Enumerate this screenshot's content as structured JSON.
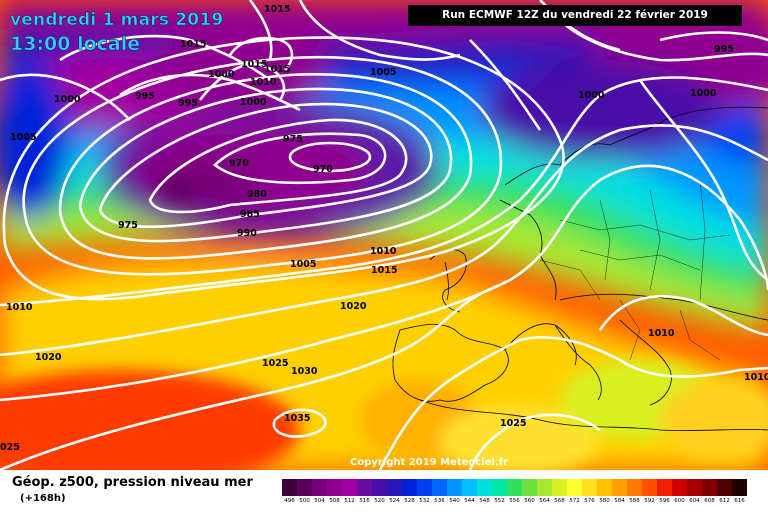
{
  "header": {
    "date": "vendredi 1 mars 2019",
    "time": "13:00 locale",
    "run": "Run ECMWF 12Z du vendredi 22 février 2019"
  },
  "copyright": "Copyright 2019 Meteociel.fr",
  "legend": {
    "title": "Géop. z500, pression niveau mer",
    "subtitle": "(+168h)",
    "scale": [
      {
        "v": "496",
        "c": "#3c003c"
      },
      {
        "v": "500",
        "c": "#5a005a"
      },
      {
        "v": "504",
        "c": "#780078"
      },
      {
        "v": "508",
        "c": "#900090"
      },
      {
        "v": "512",
        "c": "#a000a0"
      },
      {
        "v": "516",
        "c": "#6a0aa0"
      },
      {
        "v": "520",
        "c": "#4a0fa8"
      },
      {
        "v": "524",
        "c": "#2818b8"
      },
      {
        "v": "528",
        "c": "#0020d8"
      },
      {
        "v": "532",
        "c": "#0040f0"
      },
      {
        "v": "536",
        "c": "#0068ff"
      },
      {
        "v": "540",
        "c": "#0094ff"
      },
      {
        "v": "544",
        "c": "#00c0ff"
      },
      {
        "v": "548",
        "c": "#00e0e0"
      },
      {
        "v": "552",
        "c": "#00e8a0"
      },
      {
        "v": "556",
        "c": "#30e060"
      },
      {
        "v": "560",
        "c": "#70e040"
      },
      {
        "v": "564",
        "c": "#a8e830"
      },
      {
        "v": "568",
        "c": "#d8f020"
      },
      {
        "v": "572",
        "c": "#ffff30"
      },
      {
        "v": "576",
        "c": "#ffe020"
      },
      {
        "v": "580",
        "c": "#ffc000"
      },
      {
        "v": "584",
        "c": "#ffa000"
      },
      {
        "v": "588",
        "c": "#ff7a00"
      },
      {
        "v": "592",
        "c": "#ff5000"
      },
      {
        "v": "596",
        "c": "#f02000"
      },
      {
        "v": "600",
        "c": "#d00000"
      },
      {
        "v": "604",
        "c": "#a80000"
      },
      {
        "v": "608",
        "c": "#800000"
      },
      {
        "v": "612",
        "c": "#500000"
      },
      {
        "v": "616",
        "c": "#200000"
      }
    ]
  },
  "isobar_labels": [
    {
      "t": "1015"
    },
    {
      "t": "1015"
    },
    {
      "t": "1015"
    },
    {
      "t": "1015"
    },
    {
      "t": "1010"
    },
    {
      "t": "1000"
    },
    {
      "t": "995"
    },
    {
      "t": "995"
    },
    {
      "t": "1000"
    },
    {
      "t": "1000"
    },
    {
      "t": "1005"
    },
    {
      "t": "1005"
    },
    {
      "t": "995"
    },
    {
      "t": "1000"
    },
    {
      "t": "1000"
    },
    {
      "t": "975"
    },
    {
      "t": "970"
    },
    {
      "t": "970"
    },
    {
      "t": "980"
    },
    {
      "t": "985"
    },
    {
      "t": "975"
    },
    {
      "t": "990"
    },
    {
      "t": "1010"
    },
    {
      "t": "1005"
    },
    {
      "t": "1015"
    },
    {
      "t": "1010"
    },
    {
      "t": "1020"
    },
    {
      "t": "1020"
    },
    {
      "t": "1025"
    },
    {
      "t": "1030"
    },
    {
      "t": "1035"
    },
    {
      "t": "1025"
    },
    {
      "t": "1010"
    },
    {
      "t": "1010"
    },
    {
      "t": "025"
    }
  ]
}
